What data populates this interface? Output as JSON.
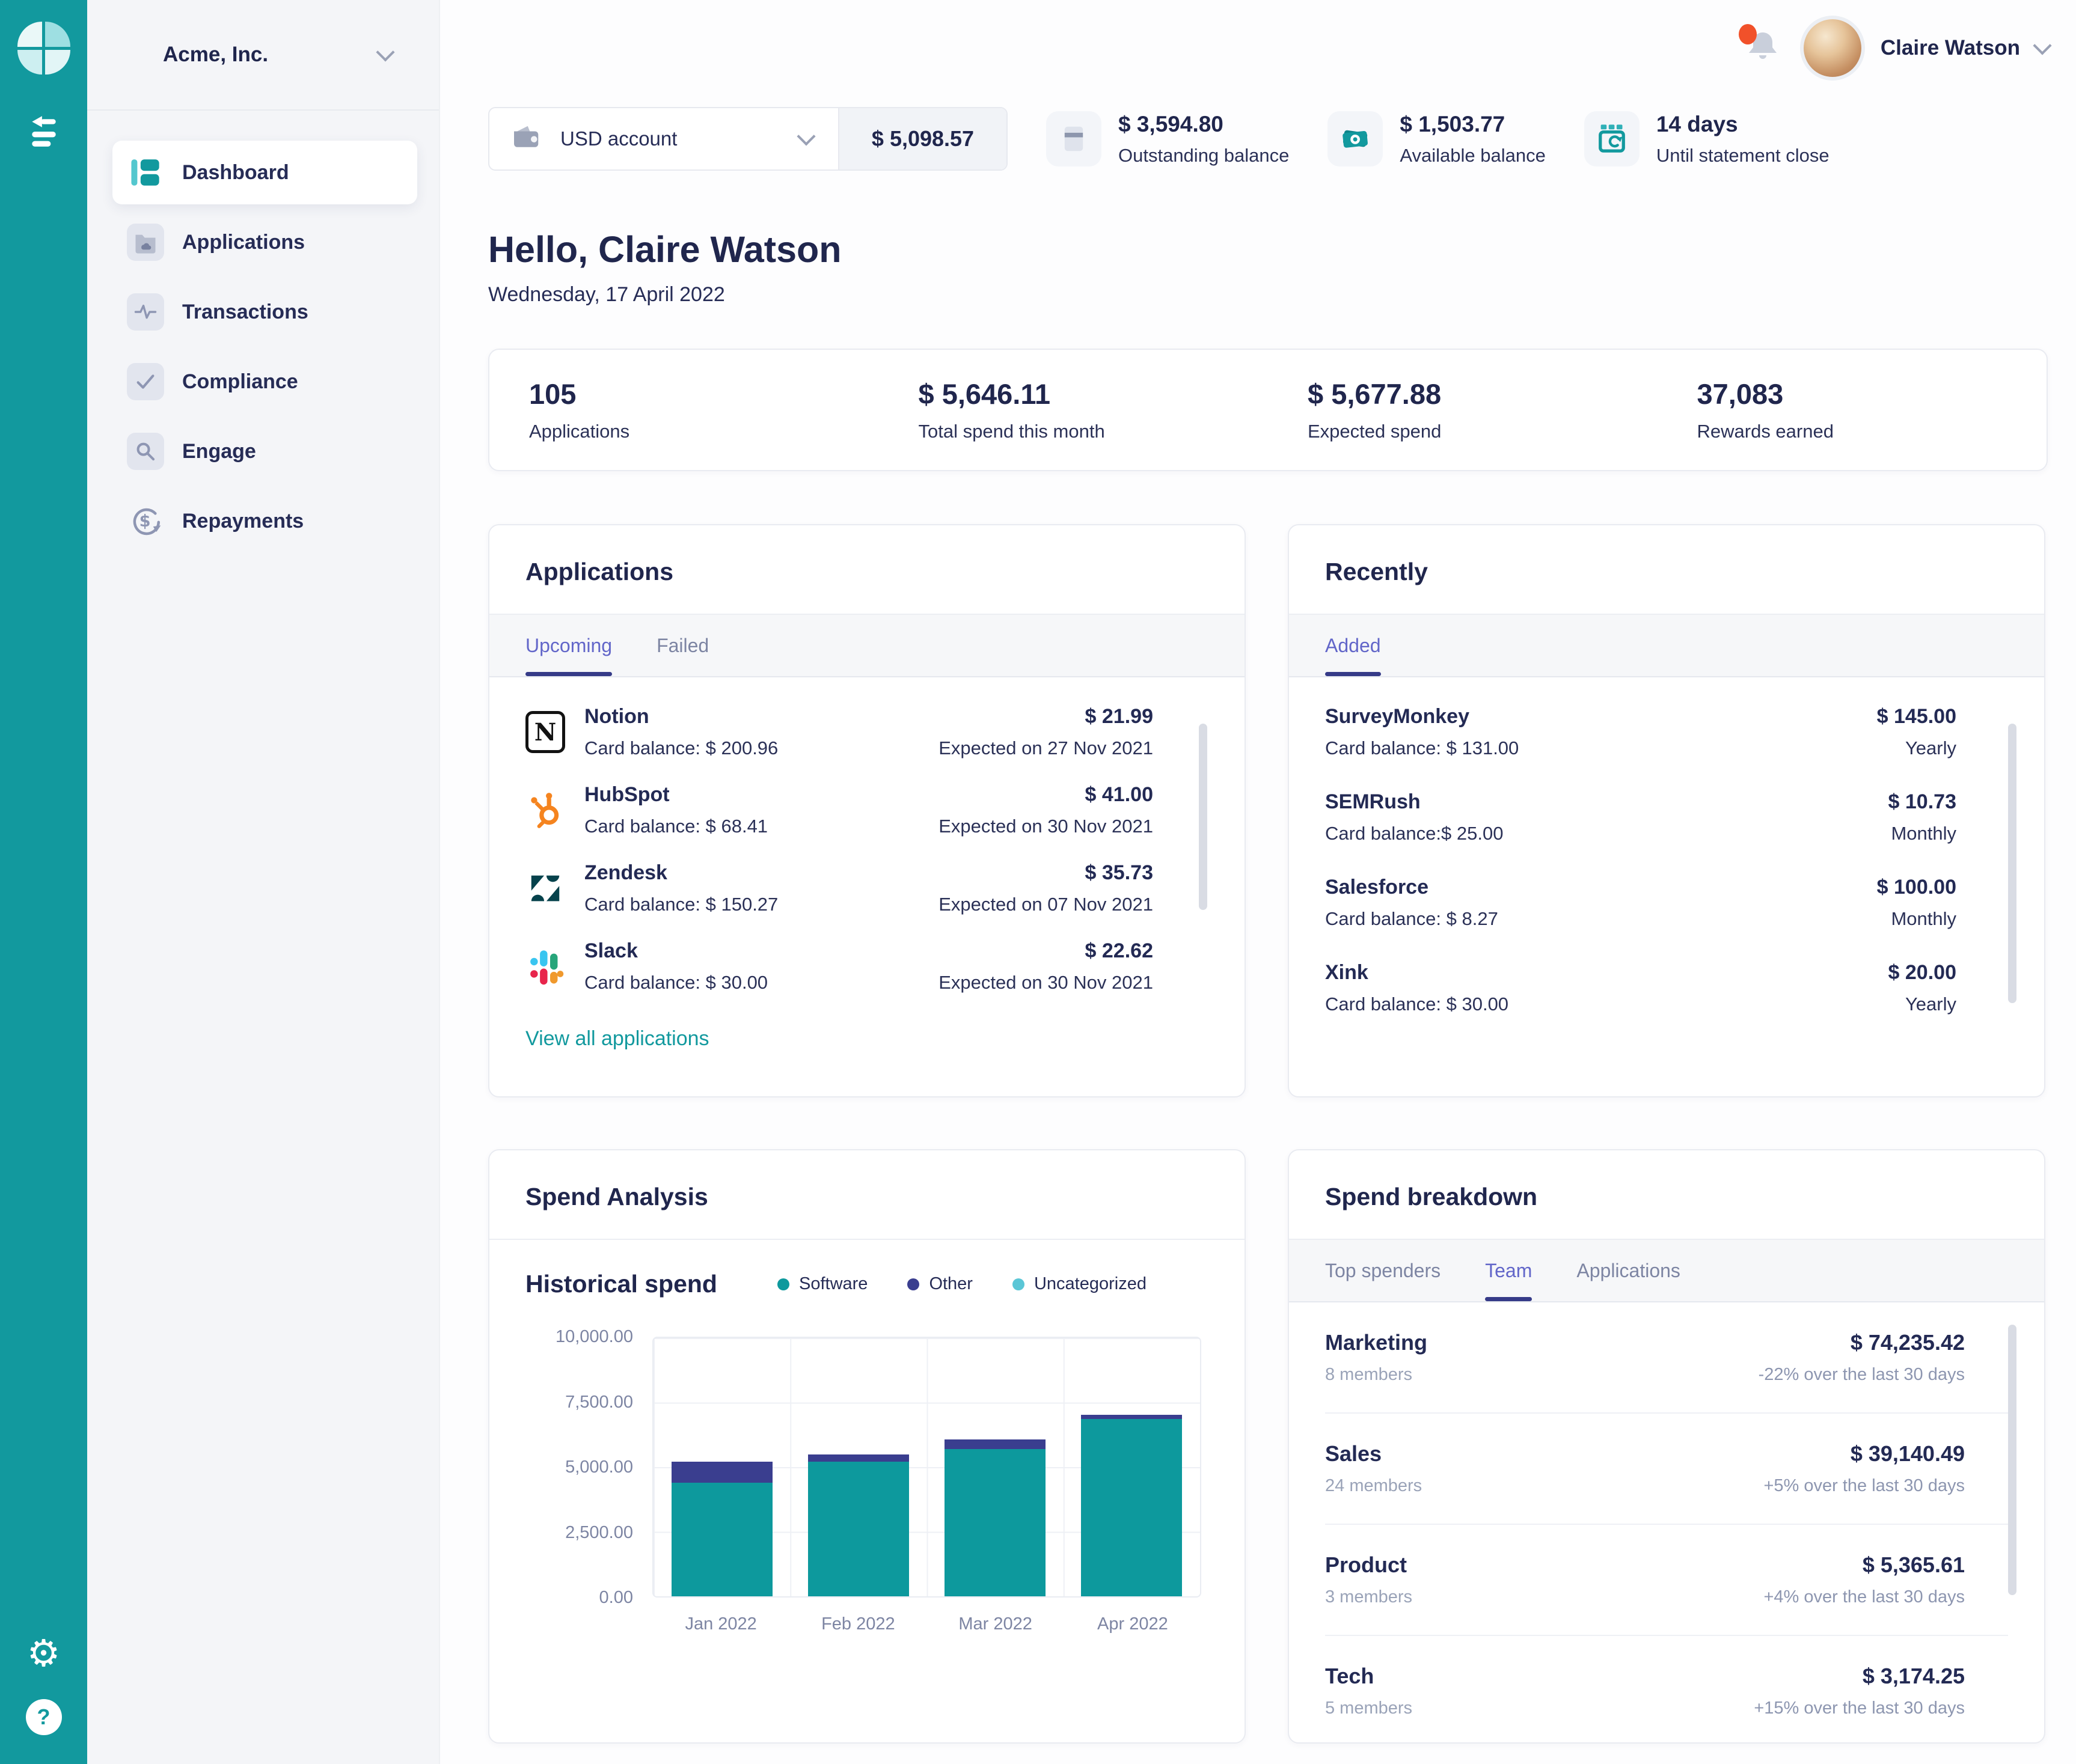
{
  "sidebar": {
    "company": "Acme, Inc.",
    "items": [
      {
        "label": "Dashboard",
        "active": true
      },
      {
        "label": "Applications",
        "active": false
      },
      {
        "label": "Transactions",
        "active": false
      },
      {
        "label": "Compliance",
        "active": false
      },
      {
        "label": "Engage",
        "active": false
      },
      {
        "label": "Repayments",
        "active": false
      }
    ]
  },
  "topbar": {
    "user_name": "Claire Watson",
    "account_selector": {
      "label": "USD account",
      "balance": "$ 5,098.57"
    },
    "stats": [
      {
        "value": "$ 3,594.80",
        "label": "Outstanding balance",
        "icon": "card-icon"
      },
      {
        "value": "$ 1,503.77",
        "label": "Available balance",
        "icon": "cash-icon"
      },
      {
        "value": "14 days",
        "label": "Until statement close",
        "icon": "calendar-icon"
      }
    ]
  },
  "greeting": {
    "title": "Hello, Claire Watson",
    "date": "Wednesday, 17 April 2022"
  },
  "summary": {
    "items": [
      {
        "value": "105",
        "label": "Applications"
      },
      {
        "value": "$ 5,646.11",
        "label": "Total spend this month"
      },
      {
        "value": "$ 5,677.88",
        "label": "Expected spend"
      },
      {
        "value": "37,083",
        "label": "Rewards earned"
      }
    ]
  },
  "applications_card": {
    "title": "Applications",
    "tabs": [
      {
        "label": "Upcoming",
        "active": true
      },
      {
        "label": "Failed",
        "active": false
      }
    ],
    "items": [
      {
        "name": "Notion",
        "balance": "Card balance: $ 200.96",
        "amount": "$ 21.99",
        "note": "Expected on 27 Nov 2021",
        "icon": "notion-icon"
      },
      {
        "name": "HubSpot",
        "balance": "Card balance: $ 68.41",
        "amount": "$ 41.00",
        "note": "Expected on 30 Nov 2021",
        "icon": "hubspot-icon"
      },
      {
        "name": "Zendesk",
        "balance": "Card balance: $ 150.27",
        "amount": "$ 35.73",
        "note": "Expected on 07 Nov 2021",
        "icon": "zendesk-icon"
      },
      {
        "name": "Slack",
        "balance": "Card balance: $ 30.00",
        "amount": "$ 22.62",
        "note": "Expected on 30 Nov 2021",
        "icon": "slack-icon"
      }
    ],
    "link": "View all applications"
  },
  "recently_card": {
    "title": "Recently",
    "tabs": [
      {
        "label": "Added",
        "active": true
      }
    ],
    "items": [
      {
        "name": "SurveyMonkey",
        "balance": "Card balance: $ 131.00",
        "amount": "$ 145.00",
        "note": "Yearly"
      },
      {
        "name": "SEMRush",
        "balance": "Card balance:$ 25.00",
        "amount": "$ 10.73",
        "note": "Monthly"
      },
      {
        "name": "Salesforce",
        "balance": "Card balance: $ 8.27",
        "amount": "$ 100.00",
        "note": "Monthly"
      },
      {
        "name": "Xink",
        "balance": "Card balance: $ 30.00",
        "amount": "$ 20.00",
        "note": "Yearly"
      }
    ]
  },
  "spend_analysis": {
    "title": "Spend Analysis",
    "section_title": "Historical spend"
  },
  "chart_data": {
    "type": "bar",
    "stacked": true,
    "title": "Historical spend",
    "categories": [
      "Jan 2022",
      "Feb 2022",
      "Mar 2022",
      "Apr 2022"
    ],
    "series": [
      {
        "name": "Software",
        "color": "#0d999d",
        "values": [
          4400,
          5200,
          5700,
          6850
        ]
      },
      {
        "name": "Other",
        "color": "#3a3e8f",
        "values": [
          800,
          300,
          380,
          180
        ]
      },
      {
        "name": "Uncategorized",
        "color": "#5bc6d6",
        "values": [
          0,
          0,
          0,
          0
        ]
      }
    ],
    "ylim": [
      0,
      10000
    ],
    "yticks": [
      "10,000.00",
      "7,500.00",
      "5,000.00",
      "2,500.00",
      "0.00"
    ],
    "grid": true,
    "legend_position": "top"
  },
  "spend_breakdown": {
    "title": "Spend breakdown",
    "tabs": [
      {
        "label": "Top spenders",
        "active": false
      },
      {
        "label": "Team",
        "active": true
      },
      {
        "label": "Applications",
        "active": false
      }
    ],
    "items": [
      {
        "name": "Marketing",
        "members": "8 members",
        "amount": "$ 74,235.42",
        "change": "-22% over the last 30 days"
      },
      {
        "name": "Sales",
        "members": "24 members",
        "amount": "$ 39,140.49",
        "change": "+5% over the last 30 days"
      },
      {
        "name": "Product",
        "members": "3 members",
        "amount": "$ 5,365.61",
        "change": "+4% over the last 30 days"
      },
      {
        "name": "Tech",
        "members": "5 members",
        "amount": "$ 3,174.25",
        "change": "+15% over the last 30 days"
      }
    ]
  },
  "colors": {
    "accent_teal": "#12999E",
    "navy": "#272d58",
    "tab_active": "#6266c9",
    "tab_underline": "#363b88",
    "notification": "#f1512a"
  }
}
